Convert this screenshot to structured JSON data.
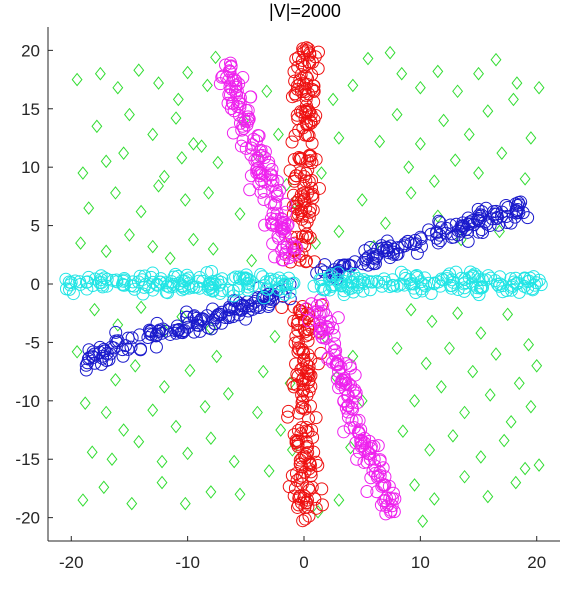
{
  "chart_data": {
    "type": "scatter",
    "title": "|V|=2000",
    "xlabel": "",
    "ylabel": "",
    "xlim": [
      -22,
      22
    ],
    "ylim": [
      -22,
      22
    ],
    "xticks": [
      -20,
      -10,
      0,
      10,
      20
    ],
    "yticks": [
      -20,
      -15,
      -10,
      -5,
      0,
      5,
      10,
      15,
      20
    ],
    "xtick_labels": [
      "-20",
      "-10",
      "0",
      "10",
      "20"
    ],
    "ytick_labels": [
      "-20",
      "-15",
      "-10",
      "-5",
      "0",
      "5",
      "10",
      "15",
      "20"
    ],
    "grid": false,
    "legend": false,
    "series": [
      {
        "marker": "diamond",
        "color": "#33dd33",
        "points": [
          [
            -19.5,
            17.5
          ],
          [
            -17.5,
            18.0
          ],
          [
            -16.0,
            16.8
          ],
          [
            -14.2,
            18.3
          ],
          [
            -12.5,
            17.2
          ],
          [
            -10.0,
            18.1
          ],
          [
            -8.3,
            17.0
          ],
          [
            -7.6,
            19.4
          ],
          [
            -17.8,
            13.5
          ],
          [
            -15.0,
            14.5
          ],
          [
            -13.0,
            12.8
          ],
          [
            -11.0,
            14.2
          ],
          [
            -9.5,
            12.0
          ],
          [
            -10.8,
            15.8
          ],
          [
            -19.0,
            9.5
          ],
          [
            -17.0,
            10.5
          ],
          [
            -15.5,
            11.2
          ],
          [
            -12.0,
            9.2
          ],
          [
            -10.5,
            10.8
          ],
          [
            -8.8,
            11.8
          ],
          [
            -18.5,
            6.5
          ],
          [
            -16.2,
            7.8
          ],
          [
            -14.0,
            6.2
          ],
          [
            -12.5,
            8.4
          ],
          [
            -10.2,
            7.2
          ],
          [
            -8.2,
            7.8
          ],
          [
            -7.4,
            10.4
          ],
          [
            -19.2,
            3.5
          ],
          [
            -17.0,
            2.8
          ],
          [
            -15.0,
            4.2
          ],
          [
            -13.0,
            3.2
          ],
          [
            -11.5,
            2.2
          ],
          [
            -9.5,
            3.8
          ],
          [
            -7.8,
            3.0
          ],
          [
            -18.0,
            -2.2
          ],
          [
            -16.0,
            -3.5
          ],
          [
            -14.0,
            -2.0
          ],
          [
            -12.0,
            -4.0
          ],
          [
            -10.5,
            -2.8
          ],
          [
            -8.0,
            -3.8
          ],
          [
            -19.5,
            -5.8
          ],
          [
            -16.2,
            -8.2
          ],
          [
            -14.5,
            -7.0
          ],
          [
            -12.0,
            -8.8
          ],
          [
            -9.8,
            -7.4
          ],
          [
            -7.5,
            -6.2
          ],
          [
            -18.8,
            -10.2
          ],
          [
            -17.0,
            -11.0
          ],
          [
            -15.5,
            -12.5
          ],
          [
            -13.0,
            -10.8
          ],
          [
            -11.0,
            -12.2
          ],
          [
            -8.5,
            -10.5
          ],
          [
            -6.5,
            -9.4
          ],
          [
            -18.2,
            -14.4
          ],
          [
            -16.5,
            -15.0
          ],
          [
            -14.2,
            -13.5
          ],
          [
            -12.2,
            -15.2
          ],
          [
            -10.0,
            -14.5
          ],
          [
            -8.0,
            -13.2
          ],
          [
            -6.0,
            -15.2
          ],
          [
            -19.0,
            -18.5
          ],
          [
            -17.2,
            -17.4
          ],
          [
            -14.8,
            -18.8
          ],
          [
            -12.2,
            -17.0
          ],
          [
            -10.2,
            -18.8
          ],
          [
            -8.0,
            -17.8
          ],
          [
            -5.5,
            -18.0
          ],
          [
            -3.0,
            -16.0
          ],
          [
            -4.0,
            -11.0
          ],
          [
            -2.0,
            -12.5
          ],
          [
            -3.5,
            -7.5
          ],
          [
            -2.5,
            -4.5
          ],
          [
            -5.2,
            14.0
          ],
          [
            -3.2,
            16.5
          ],
          [
            -4.0,
            11.0
          ],
          [
            -2.2,
            12.8
          ],
          [
            -5.5,
            6.0
          ],
          [
            -1.5,
            8.5
          ],
          [
            -4.5,
            2.0
          ],
          [
            1.5,
            9.5
          ],
          [
            3.0,
            12.5
          ],
          [
            2.5,
            15.8
          ],
          [
            4.2,
            17.0
          ],
          [
            5.5,
            19.3
          ],
          [
            7.4,
            19.8
          ],
          [
            8.4,
            18.0
          ],
          [
            10.0,
            16.8
          ],
          [
            11.5,
            18.2
          ],
          [
            13.2,
            16.5
          ],
          [
            15.0,
            18.0
          ],
          [
            16.5,
            19.2
          ],
          [
            18.3,
            17.2
          ],
          [
            20.2,
            16.8
          ],
          [
            12.0,
            14.0
          ],
          [
            14.2,
            12.8
          ],
          [
            15.8,
            14.8
          ],
          [
            18.0,
            15.8
          ],
          [
            19.5,
            12.5
          ],
          [
            10.0,
            12.0
          ],
          [
            8.0,
            14.5
          ],
          [
            6.5,
            12.2
          ],
          [
            9.0,
            10.0
          ],
          [
            11.2,
            8.8
          ],
          [
            13.0,
            10.6
          ],
          [
            15.0,
            9.5
          ],
          [
            17.0,
            11.2
          ],
          [
            19.0,
            9.0
          ],
          [
            5.0,
            7.2
          ],
          [
            7.0,
            5.2
          ],
          [
            9.2,
            7.8
          ],
          [
            11.5,
            5.8
          ],
          [
            13.5,
            3.8
          ],
          [
            16.8,
            4.5
          ],
          [
            3.0,
            4.5
          ],
          [
            6.0,
            3.2
          ],
          [
            9.2,
            -2.2
          ],
          [
            11.0,
            -3.2
          ],
          [
            13.2,
            -2.5
          ],
          [
            15.2,
            -4.2
          ],
          [
            17.5,
            -2.6
          ],
          [
            19.3,
            -5.2
          ],
          [
            8.0,
            -5.5
          ],
          [
            10.5,
            -6.8
          ],
          [
            12.5,
            -5.5
          ],
          [
            14.5,
            -7.5
          ],
          [
            16.5,
            -6.0
          ],
          [
            18.5,
            -8.5
          ],
          [
            20.0,
            -7.0
          ],
          [
            9.5,
            -10.0
          ],
          [
            11.8,
            -8.8
          ],
          [
            13.8,
            -11.0
          ],
          [
            16.0,
            -9.5
          ],
          [
            17.8,
            -11.8
          ],
          [
            19.5,
            -10.5
          ],
          [
            8.5,
            -12.6
          ],
          [
            10.8,
            -14.2
          ],
          [
            12.8,
            -13.0
          ],
          [
            15.2,
            -14.8
          ],
          [
            17.2,
            -13.4
          ],
          [
            19.0,
            -15.8
          ],
          [
            9.5,
            -17.2
          ],
          [
            11.2,
            -18.4
          ],
          [
            13.8,
            -16.5
          ],
          [
            15.8,
            -18.2
          ],
          [
            18.2,
            -17.0
          ],
          [
            20.2,
            -15.5
          ],
          [
            10.2,
            -20.3
          ],
          [
            4.0,
            -14.0
          ],
          [
            5.0,
            -10.0
          ],
          [
            2.8,
            -8.0
          ],
          [
            1.8,
            -4.5
          ],
          [
            4.2,
            -6.2
          ],
          [
            3.0,
            -18.5
          ],
          [
            1.2,
            -19.5
          ],
          [
            -1.0,
            -14.2
          ],
          [
            -1.2,
            -8.5
          ],
          [
            -0.8,
            7.0
          ],
          [
            1.0,
            3.5
          ]
        ]
      },
      {
        "marker": "circle",
        "color": "#ee1111",
        "points": "vertical band x≈0 from y=2 to 20 and y=-2 to -20"
      },
      {
        "marker": "circle",
        "color": "#ee22ee",
        "points": "diagonal band from (-6.5,18.5) to (-1,2) and from (1,-2) to (7.5,-19.5)"
      },
      {
        "marker": "circle",
        "color": "#1a1acc",
        "points": "diagonal band from (-19,-6.5) to (-1,-0.5) and from (1,0.8) to (18.5,6.5)"
      },
      {
        "marker": "circle",
        "color": "#22e5e5",
        "points": "horizontal band y≈0 from x=-20.5 to -1 and x=1 to 20.5"
      }
    ],
    "band_generators": [
      {
        "series": 1,
        "segments": [
          {
            "from": [
              0.0,
              1.8
            ],
            "to": [
              0.0,
              20.3
            ]
          },
          {
            "from": [
              0.0,
              -1.8
            ],
            "to": [
              0.0,
              -20.3
            ]
          }
        ],
        "count_per_segment": 150,
        "spread": 0.55
      },
      {
        "series": 2,
        "segments": [
          {
            "from": [
              -6.8,
              18.8
            ],
            "to": [
              -1.0,
              1.8
            ]
          },
          {
            "from": [
              0.8,
              -1.5
            ],
            "to": [
              7.5,
              -19.6
            ]
          }
        ],
        "count_per_segment": 150,
        "spread": 0.5
      },
      {
        "series": 3,
        "segments": [
          {
            "from": [
              -19.0,
              -6.6
            ],
            "to": [
              -1.0,
              -0.5
            ]
          },
          {
            "from": [
              1.0,
              0.7
            ],
            "to": [
              19.0,
              6.6
            ]
          }
        ],
        "count_per_segment": 150,
        "spread": 0.45
      },
      {
        "series": 4,
        "segments": [
          {
            "from": [
              -20.5,
              0.0
            ],
            "to": [
              -0.8,
              0.0
            ]
          },
          {
            "from": [
              0.8,
              0.0
            ],
            "to": [
              20.5,
              0.0
            ]
          }
        ],
        "count_per_segment": 150,
        "spread": 0.45
      }
    ]
  }
}
